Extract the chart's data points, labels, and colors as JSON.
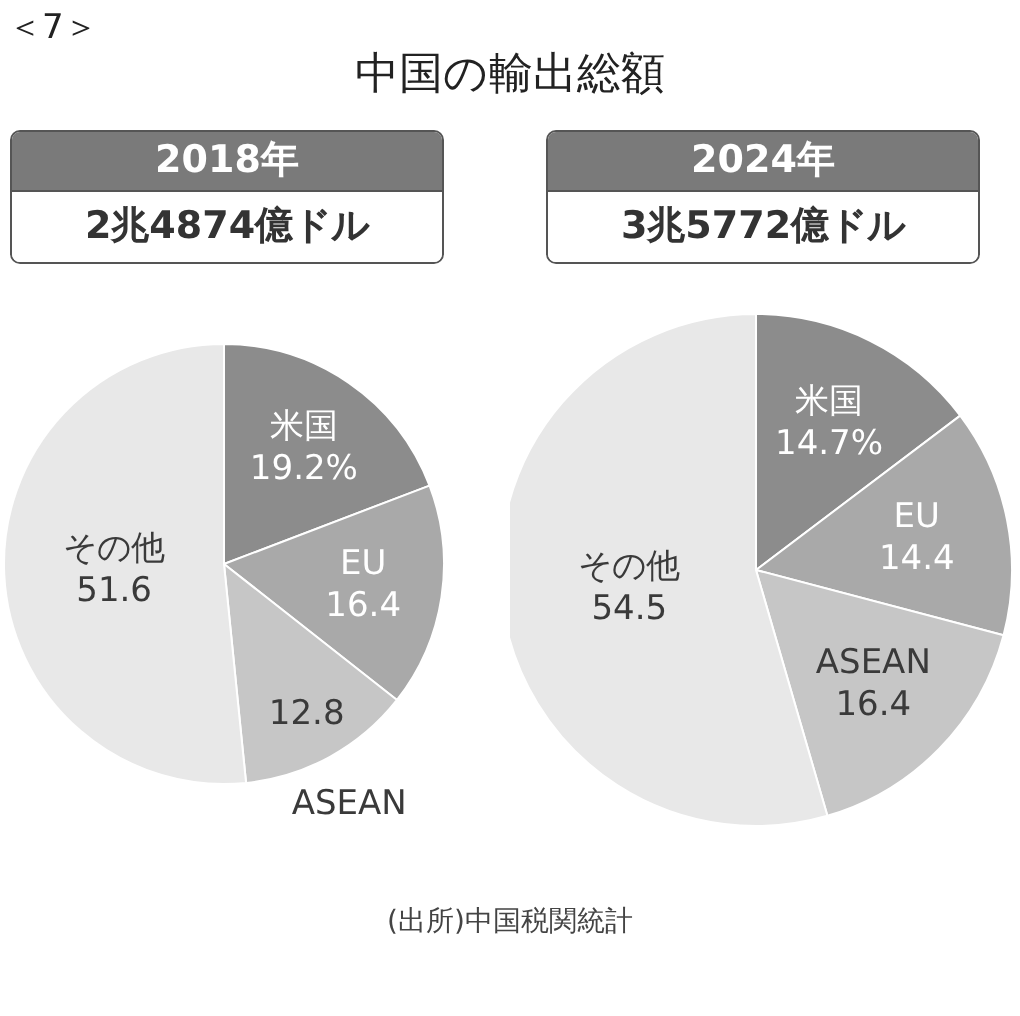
{
  "chart_data": [
    {
      "type": "other",
      "title": "中国の輸出総額",
      "annotations": [
        "＜7＞",
        "(出所)中国税関統計"
      ]
    },
    {
      "type": "pie",
      "title": "2018年",
      "subtitle": "2兆4874億ドル",
      "categories": [
        "米国",
        "EU",
        "ASEAN",
        "その他"
      ],
      "values": [
        19.2,
        16.4,
        12.8,
        51.6
      ],
      "value_labels": [
        "19.2%",
        "16.4",
        "12.8",
        "51.6"
      ],
      "colors": [
        "#8c8c8c",
        "#a9a9a9",
        "#c6c6c6",
        "#e8e8e8"
      ]
    },
    {
      "type": "pie",
      "title": "2024年",
      "subtitle": "3兆5772億ドル",
      "categories": [
        "米国",
        "EU",
        "ASEAN",
        "その他"
      ],
      "values": [
        14.7,
        14.4,
        16.4,
        54.5
      ],
      "value_labels": [
        "14.7%",
        "14.4",
        "16.4",
        "54.5"
      ],
      "colors": [
        "#8c8c8c",
        "#a9a9a9",
        "#c6c6c6",
        "#e8e8e8"
      ]
    }
  ]
}
